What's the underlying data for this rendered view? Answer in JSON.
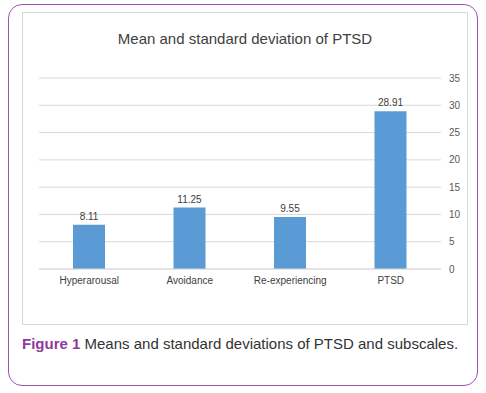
{
  "chart_data": {
    "type": "bar",
    "title": "Mean and standard deviation of PTSD",
    "categories": [
      "Hyperarousal",
      "Avoidance",
      "Re-experiencing",
      "PTSD"
    ],
    "values": [
      8.11,
      11.25,
      9.55,
      28.91
    ],
    "color": "#5b9bd5",
    "ylim": [
      0,
      35
    ],
    "yticks": [
      0,
      5,
      10,
      15,
      20,
      25,
      30,
      35
    ],
    "grid": true,
    "data_labels": true
  },
  "caption": {
    "label": "Figure 1",
    "text": "Means and standard deviations of PTSD and subscales."
  }
}
